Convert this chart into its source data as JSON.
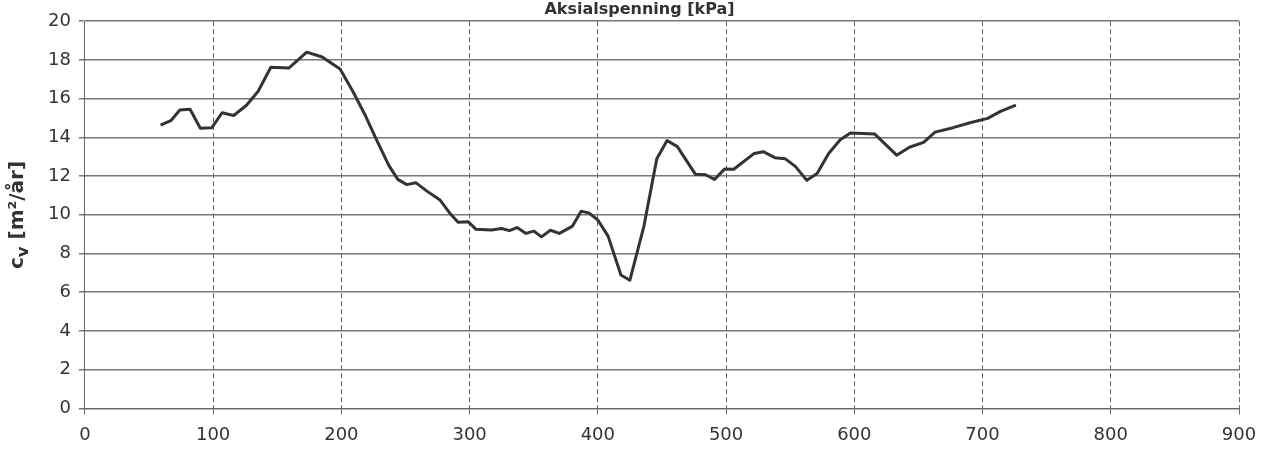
{
  "chart_data": {
    "type": "line",
    "title": "Aksialspenning [kPa]",
    "ylabel": "c$_{v}$ [m²/år]",
    "x": [
      59,
      67,
      74,
      82,
      90,
      99,
      107,
      116,
      126,
      135,
      145,
      159,
      173,
      185,
      199,
      209,
      218,
      228,
      237,
      244,
      251,
      258,
      267,
      277,
      285,
      291,
      299,
      305,
      317,
      325,
      331,
      337,
      344,
      350,
      356,
      363,
      370,
      380,
      387,
      393,
      400,
      408,
      418,
      425,
      436,
      446,
      454,
      462,
      476,
      484,
      491,
      499,
      506,
      522,
      529,
      538,
      546,
      554,
      563,
      571,
      580,
      589,
      597,
      616,
      633,
      643,
      654,
      663,
      677,
      691,
      704,
      714,
      726
    ],
    "series": [
      {
        "color": "#333333",
        "values": [
          14.63,
          14.86,
          15.41,
          15.45,
          14.47,
          14.5,
          15.27,
          15.13,
          15.66,
          16.37,
          17.62,
          17.58,
          18.4,
          18.15,
          17.53,
          16.37,
          15.22,
          13.79,
          12.55,
          11.83,
          11.56,
          11.66,
          11.21,
          10.76,
          10.05,
          9.61,
          9.64,
          9.25,
          9.21,
          9.29,
          9.18,
          9.34,
          9.04,
          9.16,
          8.86,
          9.2,
          9.04,
          9.4,
          10.18,
          10.1,
          9.73,
          8.9,
          6.89,
          6.62,
          9.43,
          12.9,
          13.84,
          13.52,
          12.1,
          12.07,
          11.83,
          12.37,
          12.35,
          13.17,
          13.26,
          12.95,
          12.9,
          12.5,
          11.78,
          12.13,
          13.17,
          13.88,
          14.23,
          14.17,
          13.08,
          13.49,
          13.74,
          14.27,
          14.5,
          14.77,
          14.98,
          15.34,
          15.66
        ]
      }
    ],
    "xlim": [
      0,
      900
    ],
    "xticks": [
      0,
      100,
      200,
      300,
      400,
      500,
      600,
      700,
      800,
      900
    ],
    "ylim": [
      0,
      20
    ],
    "yticks": [
      0,
      2,
      4,
      6,
      8,
      10,
      12,
      14,
      16,
      18,
      20
    ],
    "grid": true,
    "legend": false,
    "marker": "none",
    "line_style": "solid"
  }
}
